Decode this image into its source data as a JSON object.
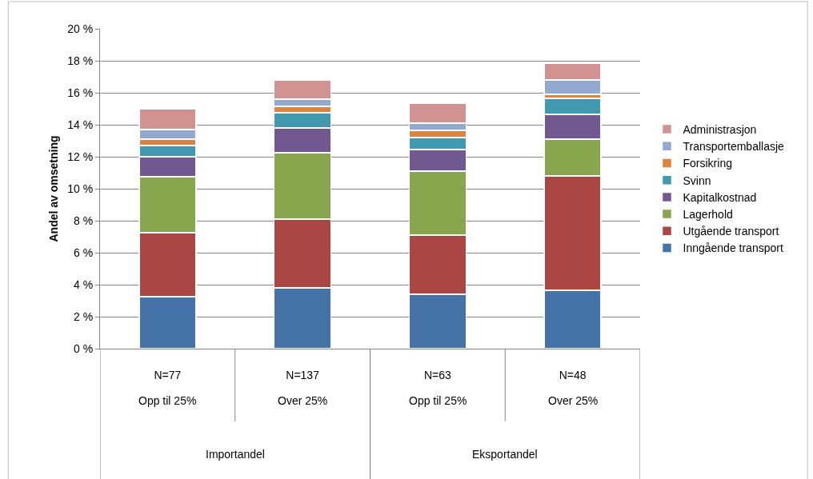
{
  "chart_data": {
    "type": "bar",
    "stacked": true,
    "ylabel": "Andel av omsetning",
    "categories": [
      "N=77",
      "N=137",
      "N=63",
      "N=48"
    ],
    "series": [
      {
        "name": "Inngående transport",
        "color": "#4572a7",
        "values": [
          3.25,
          3.8,
          3.4,
          3.65
        ]
      },
      {
        "name": "Utgående transport",
        "color": "#aa4643",
        "values": [
          4.0,
          4.3,
          3.7,
          7.15
        ]
      },
      {
        "name": "Lagerhold",
        "color": "#89a54e",
        "values": [
          3.5,
          4.15,
          4.0,
          2.3
        ]
      },
      {
        "name": "Kapitalkostnad",
        "color": "#71588f",
        "values": [
          1.25,
          1.55,
          1.35,
          1.55
        ]
      },
      {
        "name": "Svinn",
        "color": "#4198af",
        "values": [
          0.7,
          0.95,
          0.75,
          1.0
        ]
      },
      {
        "name": "Forsikring",
        "color": "#db843d",
        "values": [
          0.4,
          0.4,
          0.45,
          0.25
        ]
      },
      {
        "name": "Transportemballasje",
        "color": "#93a9cf",
        "values": [
          0.6,
          0.45,
          0.45,
          0.9
        ]
      },
      {
        "name": "Administrasjon",
        "color": "#d19392",
        "values": [
          1.3,
          1.2,
          1.25,
          1.05
        ]
      }
    ],
    "ylim": [
      0,
      20
    ],
    "yticks": [
      {
        "value": 0,
        "label": "0 %"
      },
      {
        "value": 2,
        "label": "2 %"
      },
      {
        "value": 4,
        "label": "4 %"
      },
      {
        "value": 6,
        "label": "6 %"
      },
      {
        "value": 8,
        "label": "8 %"
      },
      {
        "value": 10,
        "label": "10 %"
      },
      {
        "value": 12,
        "label": "12 %"
      },
      {
        "value": 14,
        "label": "14 %"
      },
      {
        "value": 16,
        "label": "16 %"
      },
      {
        "value": 18,
        "label": "18 %"
      },
      {
        "value": 20,
        "label": "20 %"
      }
    ],
    "grid": "y",
    "legend": "right",
    "annotations": [
      "Opp til 25%",
      "Over 25%",
      "Opp til 25%",
      "Over 25%",
      "Importandel",
      "Eksportandel"
    ]
  }
}
